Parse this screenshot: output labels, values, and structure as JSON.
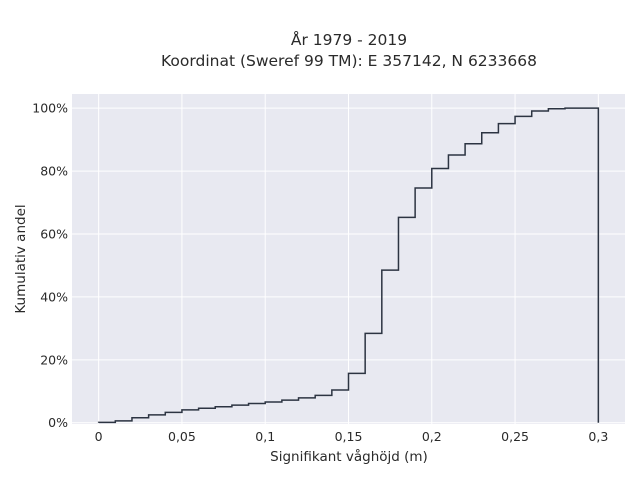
{
  "colors": {
    "plot_background": "#e8e9f1",
    "grid": "#ffffff",
    "line": "#2c3442"
  },
  "chart_data": {
    "type": "line",
    "step": "cumulative-histogram",
    "title": "År 1979 - 2019",
    "subtitle": "Koordinat (Sweref 99 TM): E 357142, N 6233668",
    "xlabel": "Signifikant våghöjd (m)",
    "ylabel": "Kumulativ andel",
    "xlim": [
      -0.016,
      0.316
    ],
    "ylim": [
      -0.4,
      104.5
    ],
    "grid": true,
    "x_ticks": [
      0,
      0.05,
      0.1,
      0.15,
      0.2,
      0.25,
      0.3
    ],
    "x_tick_labels": [
      "0",
      "0,05",
      "0,1",
      "0,15",
      "0,2",
      "0,25",
      "0,3"
    ],
    "y_ticks": [
      0,
      20,
      40,
      60,
      80,
      100
    ],
    "y_tick_labels": [
      "0%",
      "20%",
      "40%",
      "60%",
      "80%",
      "100%"
    ],
    "series": [
      {
        "bin_edges": [
          0,
          0.01,
          0.02,
          0.03,
          0.04,
          0.05,
          0.06,
          0.07,
          0.08,
          0.09,
          0.1,
          0.11,
          0.12,
          0.13,
          0.14,
          0.15,
          0.16,
          0.17,
          0.18,
          0.19,
          0.2,
          0.21,
          0.22,
          0.23,
          0.24,
          0.25,
          0.26,
          0.27,
          0.28,
          0.29,
          0.3
        ],
        "cumulative_percent": [
          0.1,
          0.6,
          1.6,
          2.5,
          3.3,
          4.1,
          4.6,
          5.1,
          5.6,
          6.1,
          6.6,
          7.2,
          7.9,
          8.7,
          10.4,
          15.7,
          28.4,
          48.5,
          65.3,
          74.6,
          80.8,
          85.1,
          88.7,
          92.2,
          95.1,
          97.4,
          99.1,
          99.8,
          100,
          100
        ]
      }
    ]
  }
}
